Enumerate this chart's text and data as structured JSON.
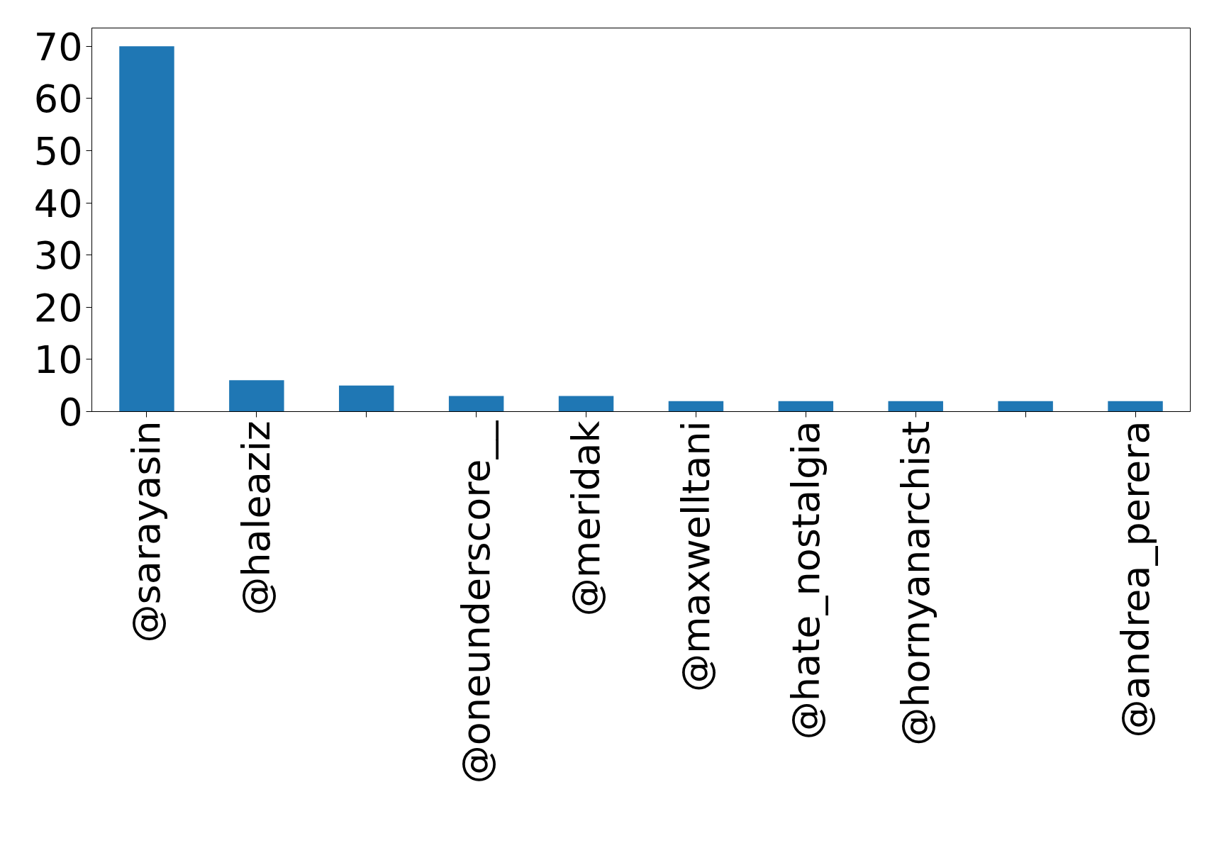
{
  "chart_data": {
    "type": "bar",
    "categories": [
      "@sarayasin",
      "@haleaziz",
      null,
      "@oneunderscore__",
      "@meridak",
      "@maxwelltani",
      "@hate_nostalgia",
      "@hornyanarchist",
      null,
      "@andrea_perera"
    ],
    "values": [
      70,
      6,
      5,
      3,
      3,
      2,
      2,
      2,
      2,
      2
    ],
    "color": "#1f77b4",
    "ylim": [
      0,
      73.5
    ],
    "yticks": [
      0,
      10,
      20,
      30,
      40,
      50,
      60,
      70
    ],
    "grid": false
  }
}
